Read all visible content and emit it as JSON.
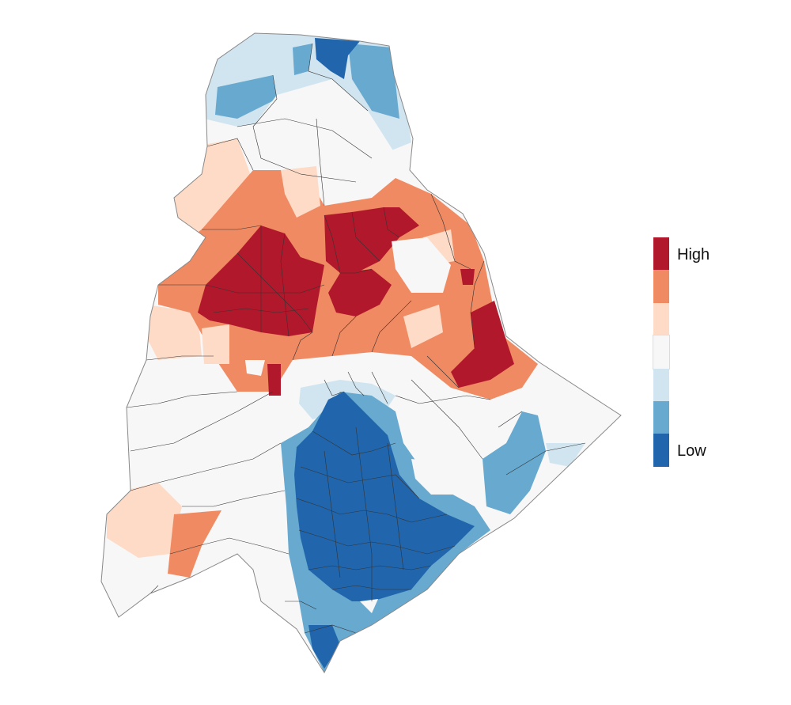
{
  "legend": {
    "high_label": "High",
    "low_label": "Low",
    "classes": [
      {
        "level": 7,
        "color": "#b2182b"
      },
      {
        "level": 6,
        "color": "#ef8a62"
      },
      {
        "level": 5,
        "color": "#fddbc7"
      },
      {
        "level": 4,
        "color": "#f7f7f7"
      },
      {
        "level": 3,
        "color": "#d1e5f0"
      },
      {
        "level": 2,
        "color": "#67a9cf"
      },
      {
        "level": 1,
        "color": "#2166ac"
      }
    ]
  },
  "map": {
    "boundary_color": "#333333",
    "outline_color": "#888888"
  }
}
